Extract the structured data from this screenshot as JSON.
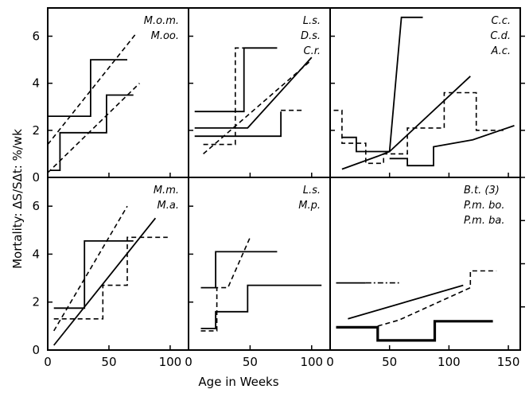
{
  "figure": {
    "ylabel": "Mortality: ΔS/SΔt: %/wk",
    "xlabel": "Age in Weeks"
  },
  "chart_data": [
    {
      "type": "line",
      "panel_label": [
        "M.o.m.",
        "M.oo."
      ],
      "xlim": [
        0,
        115
      ],
      "ylim": [
        0,
        7.2
      ],
      "x_ticks": [
        0,
        50,
        100
      ],
      "y_ticks": [
        0,
        2,
        4,
        6
      ],
      "series": [
        {
          "style": "solid",
          "points": [
            [
              0,
              2.6
            ],
            [
              35,
              2.6
            ],
            [
              35,
              5.0
            ],
            [
              65,
              5.0
            ]
          ]
        },
        {
          "style": "solid",
          "points": [
            [
              2,
              0.3
            ],
            [
              10,
              0.3
            ],
            [
              10,
              1.9
            ],
            [
              48,
              1.9
            ],
            [
              48,
              3.5
            ],
            [
              70,
              3.5
            ]
          ]
        },
        {
          "style": "dashed",
          "points": [
            [
              0,
              1.4
            ],
            [
              72,
              6.1
            ]
          ]
        },
        {
          "style": "dashed",
          "points": [
            [
              0,
              0.2
            ],
            [
              75,
              4.0
            ]
          ]
        }
      ]
    },
    {
      "type": "line",
      "panel_label": [
        "L.s.",
        "D.s.",
        "C.r."
      ],
      "xlim": [
        0,
        115
      ],
      "ylim": [
        0,
        7.2
      ],
      "x_ticks": [
        0,
        50,
        100
      ],
      "y_ticks": [
        0,
        2,
        4,
        6
      ],
      "series": [
        {
          "style": "solid",
          "points": [
            [
              5,
              2.8
            ],
            [
              45,
              2.8
            ],
            [
              45,
              5.5
            ],
            [
              72,
              5.5
            ]
          ]
        },
        {
          "style": "solid",
          "points": [
            [
              5,
              2.1
            ],
            [
              48,
              2.1
            ],
            [
              100,
              5.1
            ]
          ]
        },
        {
          "style": "solid",
          "points": [
            [
              5,
              1.75
            ],
            [
              75,
              1.75
            ],
            [
              75,
              2.8
            ]
          ]
        },
        {
          "style": "dashed",
          "points": [
            [
              12,
              1.4
            ],
            [
              38,
              1.4
            ],
            [
              38,
              5.5
            ],
            [
              45,
              5.5
            ]
          ]
        },
        {
          "style": "dashed",
          "points": [
            [
              12,
              1.0
            ],
            [
              98,
              4.9
            ]
          ]
        },
        {
          "style": "dashed",
          "points": [
            [
              75,
              2.85
            ],
            [
              92,
              2.85
            ]
          ]
        }
      ]
    },
    {
      "type": "line",
      "panel_label": [
        "C.c.",
        "C.d.",
        "A.c."
      ],
      "xlim": [
        0,
        160
      ],
      "ylim": [
        0,
        7.2
      ],
      "x_ticks": [
        0,
        50,
        100,
        150
      ],
      "y_ticks": [
        0,
        2,
        4,
        6
      ],
      "series": [
        {
          "style": "solid",
          "points": [
            [
              10,
              1.7
            ],
            [
              22,
              1.7
            ],
            [
              22,
              1.1
            ],
            [
              50,
              1.1
            ],
            [
              60,
              6.8
            ],
            [
              78,
              6.8
            ]
          ]
        },
        {
          "style": "solid",
          "points": [
            [
              10,
              0.35
            ],
            [
              40,
              0.9
            ],
            [
              50,
              1.1
            ],
            [
              118,
              4.3
            ]
          ]
        },
        {
          "style": "solid",
          "points": [
            [
              50,
              0.8
            ],
            [
              65,
              0.8
            ],
            [
              65,
              0.5
            ],
            [
              87,
              0.5
            ],
            [
              87,
              1.3
            ],
            [
              120,
              1.6
            ],
            [
              155,
              2.2
            ]
          ]
        },
        {
          "style": "dashed",
          "points": [
            [
              3,
              2.85
            ],
            [
              10,
              2.85
            ],
            [
              10,
              1.45
            ],
            [
              30,
              1.45
            ],
            [
              30,
              0.6
            ],
            [
              45,
              0.6
            ],
            [
              45,
              1.0
            ],
            [
              65,
              1.0
            ],
            [
              65,
              2.1
            ],
            [
              96,
              2.1
            ],
            [
              96,
              3.6
            ],
            [
              123,
              3.6
            ],
            [
              123,
              2.0
            ],
            [
              148,
              2.0
            ]
          ]
        }
      ]
    },
    {
      "type": "line",
      "panel_label": [
        "M.m.",
        "M.a."
      ],
      "xlim": [
        0,
        115
      ],
      "ylim": [
        0,
        7.2
      ],
      "x_ticks": [
        0,
        50,
        100
      ],
      "y_ticks": [
        0,
        2,
        4,
        6
      ],
      "series": [
        {
          "style": "solid",
          "points": [
            [
              5,
              1.75
            ],
            [
              30,
              1.75
            ],
            [
              30,
              4.55
            ],
            [
              70,
              4.55
            ]
          ]
        },
        {
          "style": "solid",
          "points": [
            [
              5,
              0.2
            ],
            [
              88,
              5.5
            ]
          ]
        },
        {
          "style": "dashed",
          "points": [
            [
              5,
              1.3
            ],
            [
              45,
              1.3
            ],
            [
              45,
              2.7
            ],
            [
              65,
              2.7
            ],
            [
              65,
              4.7
            ],
            [
              98,
              4.7
            ]
          ]
        },
        {
          "style": "dashed",
          "points": [
            [
              5,
              0.8
            ],
            [
              65,
              6.0
            ]
          ]
        }
      ]
    },
    {
      "type": "line",
      "panel_label": [
        "L.s.",
        "M.p."
      ],
      "xlim": [
        0,
        115
      ],
      "ylim": [
        0,
        7.2
      ],
      "x_ticks": [
        0,
        50,
        100
      ],
      "y_ticks": [
        0,
        2,
        4,
        6
      ],
      "series": [
        {
          "style": "solid",
          "points": [
            [
              10,
              2.6
            ],
            [
              22,
              2.6
            ],
            [
              22,
              4.1
            ],
            [
              72,
              4.1
            ]
          ]
        },
        {
          "style": "solid",
          "points": [
            [
              10,
              0.9
            ],
            [
              22,
              0.9
            ],
            [
              22,
              1.6
            ],
            [
              48,
              1.6
            ],
            [
              48,
              2.7
            ],
            [
              108,
              2.7
            ]
          ]
        },
        {
          "style": "dashed",
          "points": [
            [
              10,
              0.8
            ],
            [
              23,
              0.8
            ],
            [
              23,
              2.6
            ],
            [
              32,
              2.6
            ],
            [
              50,
              4.7
            ]
          ]
        }
      ]
    },
    {
      "type": "line",
      "panel_label": [
        "B.t. (3)",
        "P.m. bo.",
        "P.m. ba."
      ],
      "xlim": [
        0,
        160
      ],
      "ylim": [
        0,
        7.2
      ],
      "x_ticks": [
        0,
        50,
        100,
        150
      ],
      "y_ticks": [],
      "series": [
        {
          "style": "solid-thick",
          "points": [
            [
              5,
              0.95
            ],
            [
              40,
              0.95
            ],
            [
              40,
              0.4
            ],
            [
              88,
              0.4
            ],
            [
              88,
              1.2
            ],
            [
              137,
              1.2
            ]
          ]
        },
        {
          "style": "solid",
          "points": [
            [
              5,
              2.8
            ],
            [
              30,
              2.8
            ]
          ]
        },
        {
          "style": "dash-dot",
          "points": [
            [
              30,
              2.8
            ],
            [
              58,
              2.8
            ]
          ]
        },
        {
          "style": "solid",
          "points": [
            [
              15,
              1.3
            ],
            [
              112,
              2.7
            ]
          ]
        },
        {
          "style": "dashed",
          "points": [
            [
              40,
              1.0
            ],
            [
              58,
              1.25
            ],
            [
              118,
              2.6
            ],
            [
              118,
              3.3
            ],
            [
              140,
              3.3
            ]
          ]
        }
      ]
    }
  ]
}
